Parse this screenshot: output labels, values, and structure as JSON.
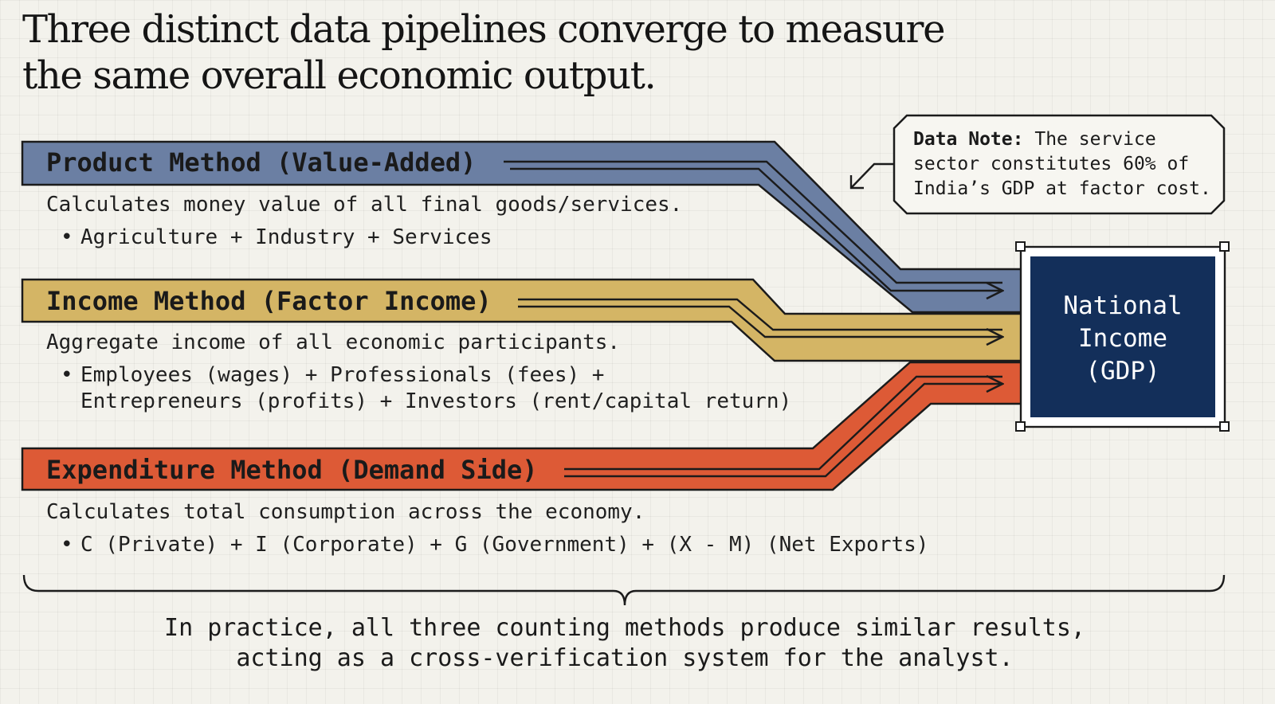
{
  "title": {
    "line1": "Three distinct data pipelines converge to measure",
    "line2": "the same overall economic output."
  },
  "methods": [
    {
      "label": "Product Method (Value-Added)",
      "description": "Calculates money value of all final goods/services.",
      "bullet": "Agriculture + Industry + Services",
      "color": "#6b7fa3"
    },
    {
      "label": "Income Method (Factor Income)",
      "description": "Aggregate income of all economic participants.",
      "bullet": "Employees (wages) + Professionals (fees) +",
      "bullet_cont": "Entrepreneurs (profits) + Investors (rent/capital return)",
      "color": "#d4b565"
    },
    {
      "label": "Expenditure Method (Demand Side)",
      "description": "Calculates total consumption across the economy.",
      "bullet": "C (Private) + I (Corporate) + G (Government) + (X - M) (Net Exports)",
      "color": "#dd5a36"
    }
  ],
  "note": {
    "prefix": "Data Note:",
    "text": "The service sector constitutes 60% of India’s GDP at factor cost."
  },
  "target": {
    "line1": "National",
    "line2": "Income",
    "line3": "(GDP)",
    "color": "#132f5a"
  },
  "footer": {
    "line1": "In practice, all three counting methods produce similar results,",
    "line2": "acting as a cross-verification system for the analyst."
  },
  "icons": {
    "arrow": "arrow-right-icon",
    "note_pointer": "arrow-down-left-icon",
    "brace": "curly-brace-icon"
  }
}
